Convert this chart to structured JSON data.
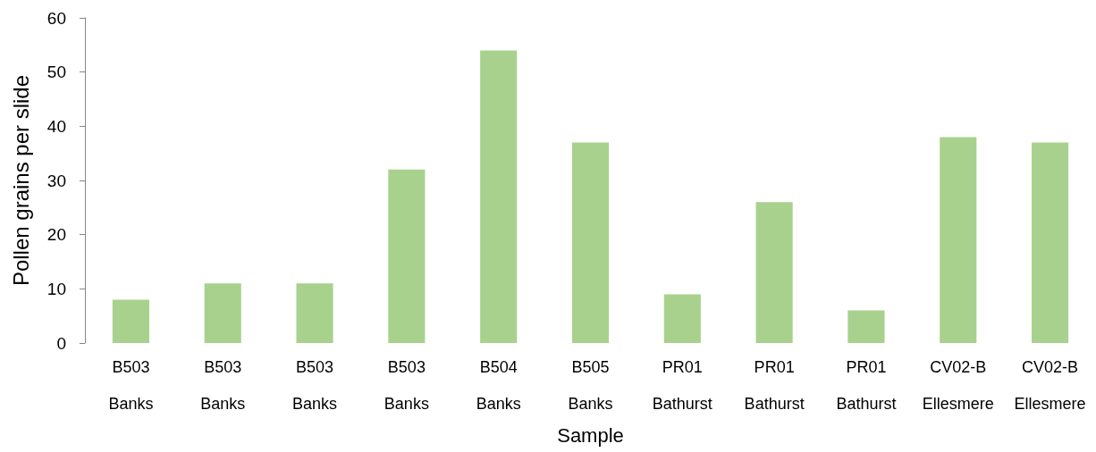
{
  "chart_data": {
    "type": "bar",
    "xlabel": "Sample",
    "ylabel": "Pollen grains per slide",
    "categories": [
      "B503\nBanks",
      "B503\nBanks",
      "B503\nBanks",
      "B503\nBanks",
      "B504\nBanks",
      "B505\nBanks",
      "PR01\nBathurst",
      "PR01\nBathurst",
      "PR01\nBathurst",
      "CV02-B\nEllesmere",
      "CV02-B\nEllesmere"
    ],
    "values": [
      8,
      11,
      11,
      32,
      54,
      37,
      9,
      26,
      6,
      38,
      37
    ],
    "color": "#a9d18e",
    "ylim": [
      0,
      60
    ],
    "yticks": [
      0,
      10,
      20,
      30,
      40,
      50,
      60
    ],
    "grid": false
  }
}
